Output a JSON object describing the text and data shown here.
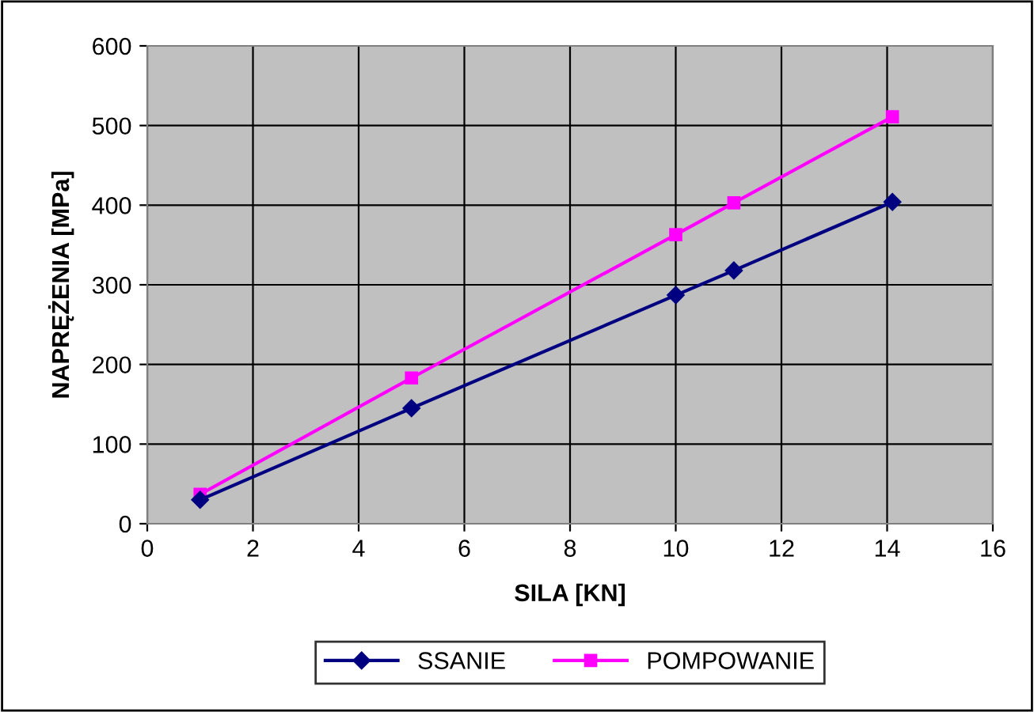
{
  "chart_data": {
    "type": "line",
    "xlabel": "SILA [KN]",
    "ylabel": "NAPRĘŻENIA [MPa]",
    "xlim": [
      0,
      16
    ],
    "xticks": [
      0,
      2,
      4,
      6,
      8,
      10,
      12,
      14,
      16
    ],
    "ylim": [
      0,
      600
    ],
    "yticks": [
      0,
      100,
      200,
      300,
      400,
      500,
      600
    ],
    "grid": true,
    "legend": "bottom",
    "series": [
      {
        "name": "SSANIE",
        "color": "#000080",
        "marker": "diamond",
        "x": [
          1,
          5,
          10,
          11.1,
          14.1
        ],
        "values": [
          30,
          145,
          287,
          318,
          404
        ]
      },
      {
        "name": "POMPOWANIE",
        "color": "#ff00ff",
        "marker": "square",
        "x": [
          1,
          5,
          10,
          11.1,
          14.1
        ],
        "values": [
          37,
          183,
          363,
          403,
          511
        ]
      }
    ]
  }
}
